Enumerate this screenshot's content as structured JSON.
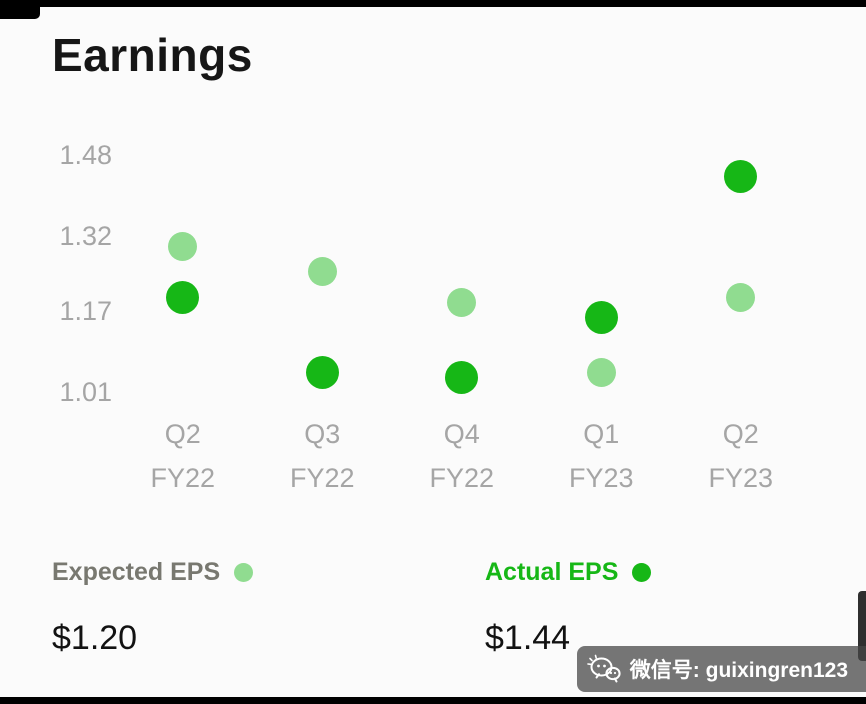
{
  "title": "Earnings",
  "chart_data": {
    "type": "scatter",
    "title": "Earnings",
    "categories": [
      [
        "Q2",
        "FY22"
      ],
      [
        "Q3",
        "FY22"
      ],
      [
        "Q4",
        "FY22"
      ],
      [
        "Q1",
        "FY23"
      ],
      [
        "Q2",
        "FY23"
      ]
    ],
    "series": [
      {
        "name": "Expected EPS",
        "color": "#90DC90",
        "values": [
          1.3,
          1.25,
          1.19,
          1.05,
          1.2
        ]
      },
      {
        "name": "Actual EPS",
        "color": "#16B716",
        "values": [
          1.2,
          1.05,
          1.04,
          1.16,
          1.44
        ]
      }
    ],
    "ytick_labels": [
      "1.48",
      "1.32",
      "1.17",
      "1.01"
    ],
    "ylim": [
      0.95,
      1.52
    ],
    "grid": false,
    "legend_position": "bottom"
  },
  "legend": {
    "expected_label": "Expected EPS",
    "actual_label": "Actual EPS"
  },
  "values": {
    "expected_value": "$1.20",
    "actual_value": "$1.44"
  },
  "watermark": {
    "text": "微信号: guixingren123"
  },
  "colors": {
    "expected": "#90DC90",
    "actual": "#16B716",
    "axis_text": "#A5A5A5",
    "legend_gray": "#787870",
    "title": "#161616"
  }
}
